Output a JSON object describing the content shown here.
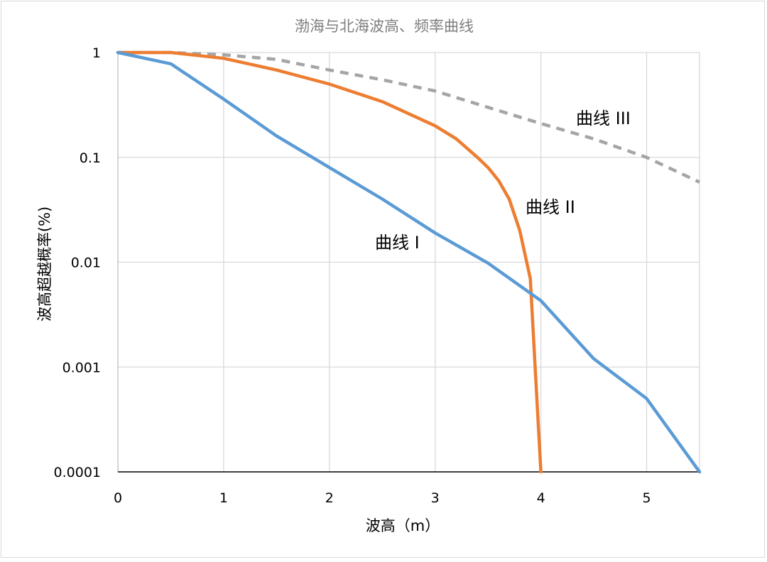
{
  "chart_data": {
    "type": "line",
    "title": "渤海与北海波高、频率曲线",
    "xlabel": "波高（m）",
    "ylabel": "波高超越概率(%)",
    "y_scale": "log",
    "xlim": [
      0,
      5.5
    ],
    "ylim": [
      0.0001,
      1
    ],
    "x_ticks": [
      "0",
      "1",
      "2",
      "3",
      "4",
      "5"
    ],
    "y_ticks": [
      "1",
      "0.1",
      "0.01",
      "0.001",
      "0.0001"
    ],
    "grid": true,
    "legend": "none",
    "series": [
      {
        "name": "曲线 I",
        "color": "#5b9bd5",
        "dash": "solid",
        "x": [
          0,
          0.5,
          1.0,
          1.5,
          2.0,
          2.5,
          3.0,
          3.5,
          4.0,
          4.5,
          5.0,
          5.5
        ],
        "y": [
          1,
          0.78,
          0.36,
          0.16,
          0.08,
          0.04,
          0.019,
          0.0098,
          0.0043,
          0.0012,
          0.0005,
          0.0001
        ]
      },
      {
        "name": "曲线 II",
        "color": "#ed7d31",
        "dash": "solid",
        "x": [
          0,
          0.5,
          1.0,
          1.5,
          2.0,
          2.5,
          3.0,
          3.2,
          3.4,
          3.5,
          3.6,
          3.7,
          3.8,
          3.9,
          4.0
        ],
        "y": [
          1,
          1,
          0.88,
          0.68,
          0.5,
          0.34,
          0.2,
          0.15,
          0.1,
          0.08,
          0.06,
          0.04,
          0.02,
          0.007,
          0.0001
        ]
      },
      {
        "name": "曲线 III",
        "color": "#a5a5a5",
        "dash": "dashed",
        "x": [
          0,
          0.5,
          1.0,
          1.5,
          2.0,
          2.5,
          3.0,
          3.5,
          4.0,
          4.5,
          5.0,
          5.5
        ],
        "y": [
          1,
          1,
          0.95,
          0.86,
          0.68,
          0.55,
          0.43,
          0.3,
          0.21,
          0.15,
          0.1,
          0.058
        ]
      }
    ]
  }
}
